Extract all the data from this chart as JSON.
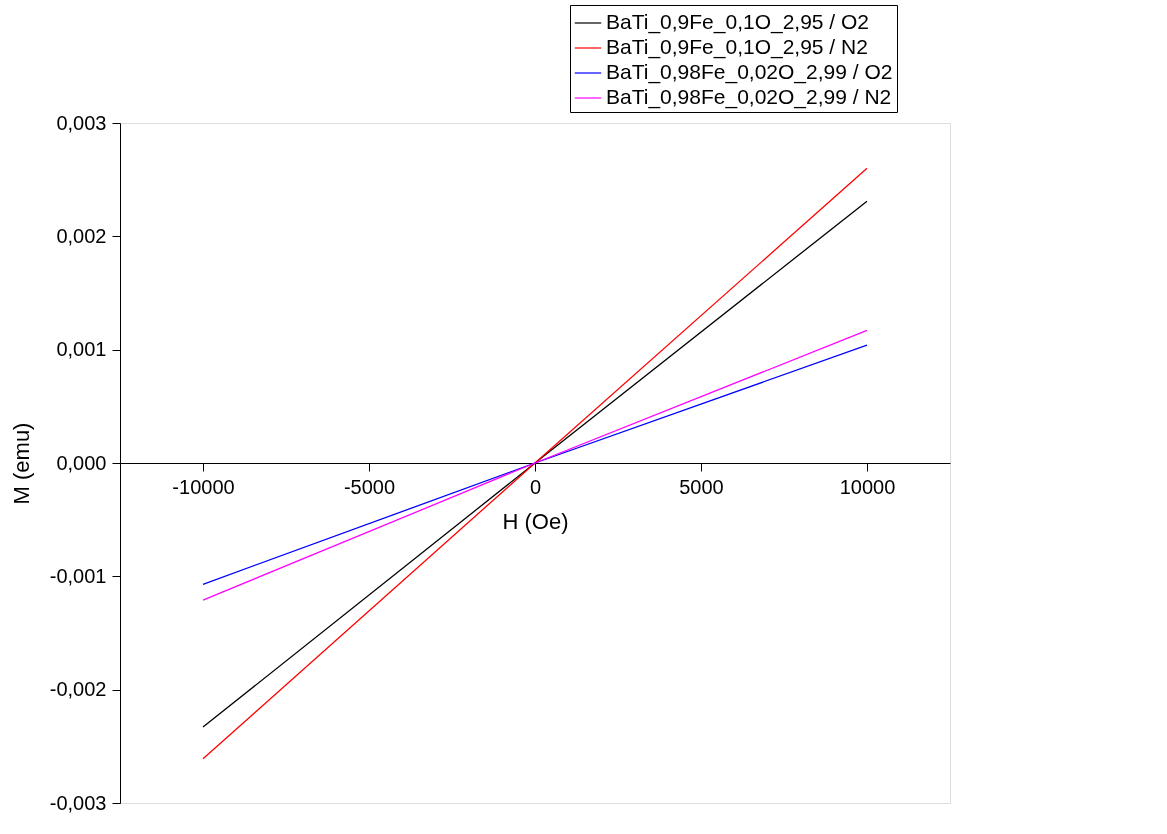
{
  "chart_data": {
    "type": "line",
    "xlabel": "H (Oe)",
    "ylabel": "M (emu)",
    "xlim": [
      -12500,
      12500
    ],
    "xticks": [
      -10000,
      -5000,
      0,
      5000,
      10000
    ],
    "ylim": [
      -0.003,
      0.003
    ],
    "yticks": [
      {
        "value": -0.003,
        "label": "-0,003"
      },
      {
        "value": -0.002,
        "label": "-0,002"
      },
      {
        "value": -0.001,
        "label": "-0,001"
      },
      {
        "value": 0,
        "label": "0,000"
      },
      {
        "value": 0.001,
        "label": "0,001"
      },
      {
        "value": 0.002,
        "label": "0,002"
      },
      {
        "value": 0.003,
        "label": "0,003"
      }
    ],
    "x": [
      -10000,
      0,
      10000
    ],
    "series": [
      {
        "name": "BaTi_0,9Fe_0,1O_2,95 / O2",
        "color": "#000000",
        "values": [
          -0.00233,
          0,
          0.00231
        ]
      },
      {
        "name": "BaTi_0,9Fe_0,1O_2,95 / N2",
        "color": "#ff0000",
        "values": [
          -0.00261,
          0,
          0.0026
        ]
      },
      {
        "name": "BaTi_0,98Fe_0,02O_2,99 / O2",
        "color": "#0000ff",
        "values": [
          -0.00107,
          0,
          0.00104
        ]
      },
      {
        "name": "BaTi_0,98Fe_0,02O_2,99 / N2",
        "color": "#ff00ff",
        "values": [
          -0.00121,
          0,
          0.00117
        ]
      }
    ],
    "grid": false,
    "legend": "top right",
    "marker": "none",
    "line_style": "solid"
  }
}
